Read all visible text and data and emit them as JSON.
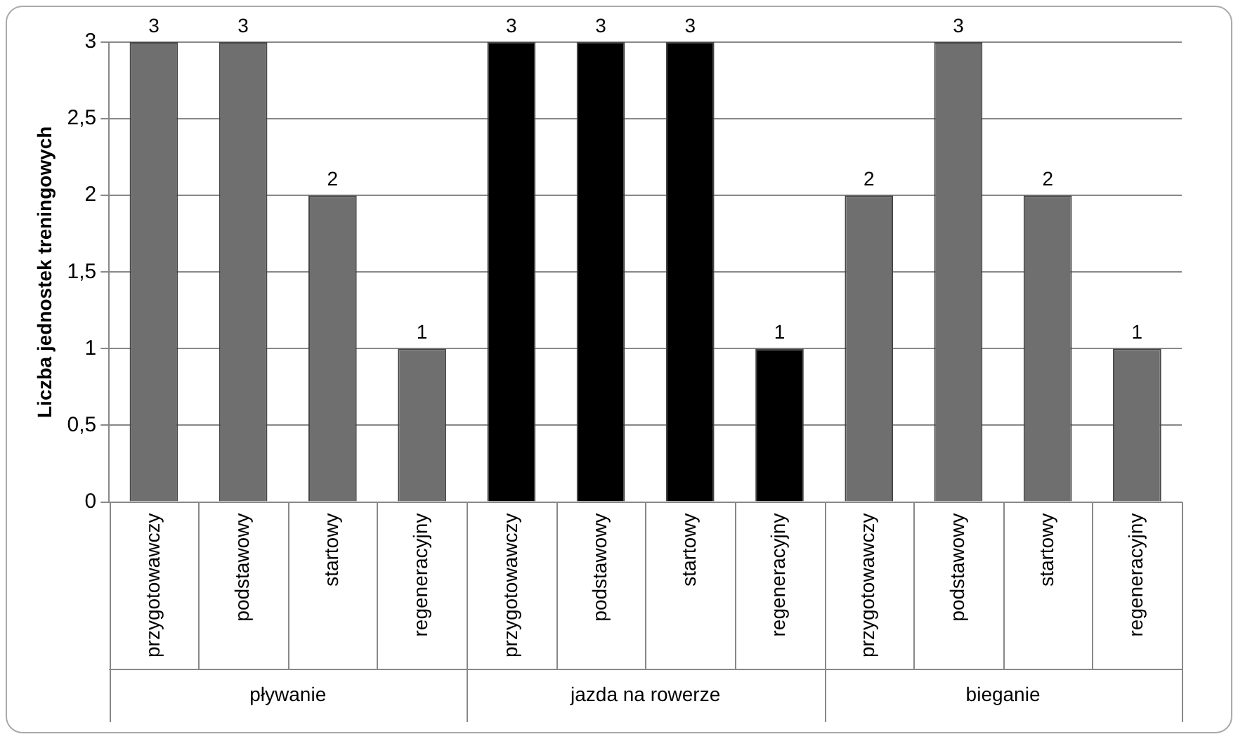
{
  "chart_data": {
    "type": "bar",
    "ylabel": "Liczba jednostek treningowych",
    "categories": [
      "przygotowawczy",
      "podstawowy",
      "startowy",
      "regeneracyjny",
      "przygotowawczy",
      "podstawowy",
      "startowy",
      "regeneracyjny",
      "przygotowawczy",
      "podstawowy",
      "startowy",
      "regeneracyjny"
    ],
    "values": [
      3,
      3,
      2,
      1,
      3,
      3,
      3,
      1,
      2,
      3,
      2,
      1
    ],
    "colors": [
      "#6f6f6f",
      "#6f6f6f",
      "#6f6f6f",
      "#6f6f6f",
      "#000000",
      "#000000",
      "#000000",
      "#000000",
      "#6f6f6f",
      "#6f6f6f",
      "#6f6f6f",
      "#6f6f6f"
    ],
    "ylim": [
      0,
      3
    ],
    "yticks": [
      0,
      {
        "value": 0.5,
        "label": "0,5"
      },
      1,
      {
        "value": 1.5,
        "label": "1,5"
      },
      2,
      {
        "value": 2.5,
        "label": "2,5"
      },
      3
    ],
    "annotations": [
      "pływanie",
      "jazda na rowerze",
      "bieganie"
    ],
    "grid": "y",
    "legend": false,
    "data_labels": true
  }
}
